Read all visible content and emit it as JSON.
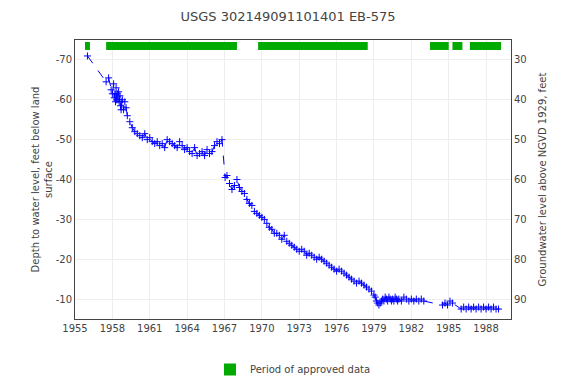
{
  "chart_data": {
    "type": "line",
    "title": "USGS 302149091101401 EB-575",
    "ylabel": "Depth to water level, feet below land\nsurface",
    "y2label": "Groundwater level above NGVD 1929, feet",
    "xlim": [
      1955,
      1990
    ],
    "xticks": [
      1955,
      1958,
      1961,
      1964,
      1967,
      1970,
      1973,
      1976,
      1979,
      1982,
      1985,
      1988
    ],
    "ylim": [
      -5,
      -75
    ],
    "yticks": [
      -70,
      -60,
      -50,
      -40,
      -30,
      -20,
      -10
    ],
    "y2lim": [
      95,
      25
    ],
    "y2ticks": [
      90,
      80,
      70,
      60,
      50,
      40,
      30
    ],
    "grid": true,
    "legend": "bottom",
    "series": [
      {
        "type": "line",
        "color": "#0000ff",
        "marker": "plus",
        "line_style": "dashed",
        "x": [
          1956.0,
          1957.5,
          1957.7,
          1957.9,
          1958.0,
          1958.1,
          1958.15,
          1958.2,
          1958.25,
          1958.3,
          1958.35,
          1958.4,
          1958.45,
          1958.5,
          1958.55,
          1958.6,
          1958.65,
          1958.7,
          1958.75,
          1958.8,
          1958.9,
          1959.0,
          1959.1,
          1959.2,
          1959.4,
          1959.6,
          1959.8,
          1960.0,
          1960.2,
          1960.4,
          1960.6,
          1960.8,
          1961.0,
          1961.2,
          1961.4,
          1961.6,
          1961.8,
          1962.0,
          1962.2,
          1962.4,
          1962.6,
          1962.8,
          1963.0,
          1963.2,
          1963.4,
          1963.6,
          1963.8,
          1964.0,
          1964.2,
          1964.4,
          1964.6,
          1964.8,
          1965.0,
          1965.2,
          1965.4,
          1965.6,
          1965.8,
          1966.0,
          1966.2,
          1966.4,
          1966.6,
          1966.8,
          1967.05,
          1967.2,
          1967.4,
          1967.6,
          1967.8,
          1968.0,
          1968.2,
          1968.4,
          1968.6,
          1968.8,
          1969.0,
          1969.2,
          1969.4,
          1969.6,
          1969.8,
          1970.0,
          1970.2,
          1970.4,
          1970.6,
          1970.8,
          1971.0,
          1971.2,
          1971.4,
          1971.6,
          1971.8,
          1972.0,
          1972.2,
          1972.4,
          1972.6,
          1972.8,
          1973.0,
          1973.2,
          1973.4,
          1973.6,
          1973.8,
          1974.0,
          1974.2,
          1974.4,
          1974.6,
          1974.8,
          1975.0,
          1975.2,
          1975.4,
          1975.6,
          1975.8,
          1976.0,
          1976.2,
          1976.4,
          1976.6,
          1976.8,
          1977.0,
          1977.2,
          1977.4,
          1977.6,
          1977.8,
          1978.0,
          1978.2,
          1978.4,
          1978.6,
          1978.8,
          1979.0,
          1979.1,
          1979.2,
          1979.3,
          1979.4,
          1979.5,
          1979.6,
          1979.7,
          1979.8,
          1979.9,
          1980.0,
          1980.1,
          1980.2,
          1980.3,
          1980.4,
          1980.5,
          1980.6,
          1980.7,
          1980.8,
          1980.9,
          1981.0,
          1981.2,
          1981.4,
          1981.6,
          1981.8,
          1982.0,
          1982.2,
          1982.4,
          1982.6,
          1982.8,
          1983.0,
          1984.5,
          1984.7,
          1984.9,
          1985.1,
          1985.3,
          1986.0,
          1986.2,
          1986.4,
          1986.6,
          1986.8,
          1987.0,
          1987.2,
          1987.4,
          1987.6,
          1987.8,
          1988.0,
          1988.2,
          1988.4,
          1988.6,
          1988.8,
          1989.0
        ],
        "values": [
          -71.0,
          -64.5,
          -65.5,
          -62.5,
          -61.5,
          -64.0,
          -60.5,
          -61.5,
          -59.5,
          -63.0,
          -60.0,
          -61.5,
          -60.0,
          -62.0,
          -59.5,
          -61.0,
          -58.5,
          -57.5,
          -59.5,
          -60.0,
          -57.5,
          -59.5,
          -58.0,
          -56.0,
          -54.5,
          -53.0,
          -52.0,
          -51.5,
          -51.0,
          -50.5,
          -51.5,
          -50.0,
          -50.5,
          -49.5,
          -49.0,
          -49.5,
          -48.5,
          -49.0,
          -48.0,
          -50.0,
          -49.5,
          -49.0,
          -48.5,
          -48.0,
          -49.5,
          -48.5,
          -47.5,
          -48.0,
          -47.0,
          -46.5,
          -48.0,
          -46.0,
          -46.5,
          -47.0,
          -46.0,
          -47.5,
          -46.5,
          -47.0,
          -48.5,
          -49.5,
          -49.0,
          -50.0,
          -40.5,
          -41.0,
          -39.0,
          -37.5,
          -38.5,
          -40.0,
          -38.0,
          -37.0,
          -36.5,
          -35.0,
          -34.0,
          -33.5,
          -32.0,
          -31.5,
          -31.0,
          -30.5,
          -30.0,
          -29.0,
          -28.0,
          -27.5,
          -26.5,
          -26.5,
          -26.0,
          -25.0,
          -26.0,
          -24.5,
          -24.0,
          -23.5,
          -23.0,
          -22.5,
          -22.0,
          -22.5,
          -22.0,
          -21.0,
          -21.5,
          -21.0,
          -20.5,
          -20.0,
          -20.5,
          -20.0,
          -19.5,
          -19.0,
          -18.5,
          -18.0,
          -17.5,
          -17.0,
          -17.5,
          -17.0,
          -16.5,
          -16.0,
          -15.5,
          -15.0,
          -14.5,
          -14.0,
          -14.5,
          -14.0,
          -13.5,
          -13.0,
          -12.5,
          -12.0,
          -11.0,
          -10.5,
          -9.5,
          -9.0,
          -8.5,
          -9.0,
          -9.5,
          -10.0,
          -9.5,
          -10.5,
          -10.0,
          -9.5,
          -10.5,
          -10.0,
          -9.5,
          -10.0,
          -9.5,
          -10.5,
          -10.0,
          -9.5,
          -10.0,
          -9.5,
          -10.5,
          -10.0,
          -9.5,
          -10.0,
          -9.5,
          -10.0,
          -9.5,
          -10.0,
          -9.5,
          -8.5,
          -9.0,
          -8.5,
          -9.5,
          -9.0,
          -7.5,
          -8.0,
          -7.5,
          -8.0,
          -7.5,
          -8.0,
          -7.5,
          -8.0,
          -7.5,
          -8.0,
          -7.5,
          -8.0,
          -7.5,
          -8.0,
          -7.5,
          -7.5
        ]
      },
      {
        "type": "bar",
        "orientation": "horizontal",
        "name": "Period of approved data",
        "color": "#00aa00",
        "y": -73.5,
        "height": 2.0,
        "intervals": [
          [
            1955.8,
            1956.2
          ],
          [
            1957.5,
            1968.0
          ],
          [
            1969.7,
            1978.5
          ],
          [
            1983.5,
            1985.0
          ],
          [
            1985.3,
            1986.1
          ],
          [
            1986.7,
            1989.2
          ]
        ]
      }
    ]
  }
}
